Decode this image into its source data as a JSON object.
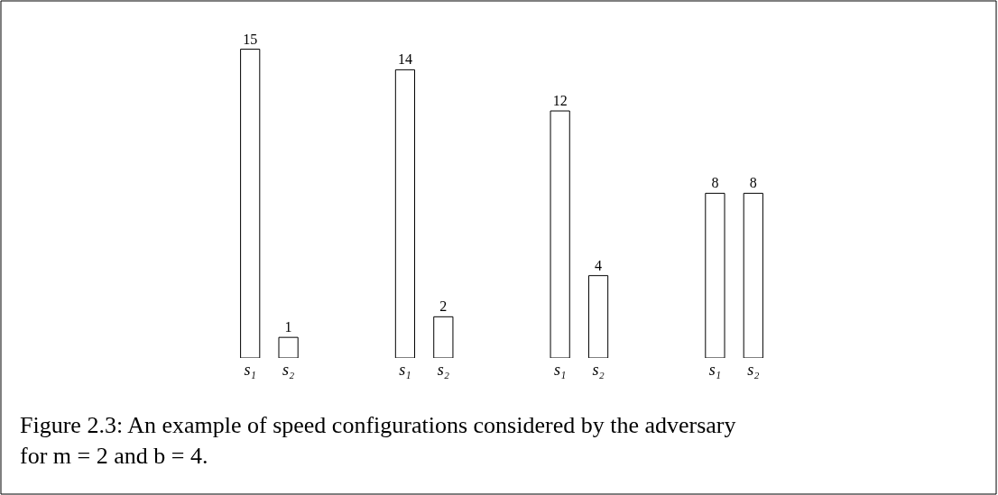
{
  "chart_data": {
    "type": "bar",
    "categories": [
      "s₁",
      "s₂",
      "s₁",
      "s₂",
      "s₁",
      "s₂",
      "s₁",
      "s₂"
    ],
    "values": [
      15,
      1,
      14,
      2,
      12,
      4,
      8,
      8
    ],
    "color": "#ffffff",
    "data_labels": true,
    "annotations": [
      "Figure 2.3: An example of speed configurations considered by the adversary for m = 2 and b = 4."
    ]
  }
}
